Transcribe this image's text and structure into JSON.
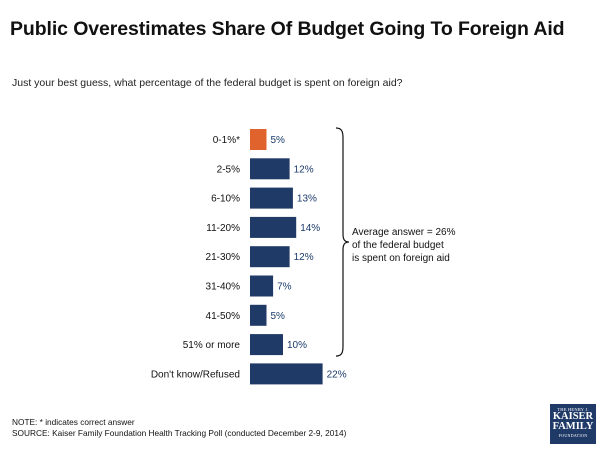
{
  "title": "Public Overestimates Share Of Budget Going To Foreign Aid",
  "subtitle": "Just your best guess, what percentage of the federal budget is spent on foreign aid?",
  "annotation": {
    "line1": "Average answer = 26%",
    "line2": "of the federal budget",
    "line3": "is spent on foreign aid"
  },
  "note": {
    "line1": "NOTE: * indicates correct answer",
    "line2": "SOURCE: Kaiser Family Foundation Health Tracking Poll (conducted December 2-9, 2014)"
  },
  "logo": {
    "line1": "THE HENRY J.",
    "line2": "KAISER",
    "line3": "FAMILY",
    "line4": "FOUNDATION"
  },
  "colors": {
    "bar": "#1f3a67",
    "highlight": "#e0622d",
    "value_text": "#1a3a6b"
  },
  "chart_data": {
    "type": "bar",
    "orientation": "horizontal",
    "title": "Public Overestimates Share Of Budget Going To Foreign Aid",
    "categories": [
      "0-1%*",
      "2-5%",
      "6-10%",
      "11-20%",
      "21-30%",
      "31-40%",
      "41-50%",
      "51% or more",
      "Don't know/Refused"
    ],
    "values": [
      5,
      12,
      13,
      14,
      12,
      7,
      5,
      10,
      22
    ],
    "value_labels": [
      "5%",
      "12%",
      "13%",
      "14%",
      "12%",
      "7%",
      "5%",
      "10%",
      "22%"
    ],
    "highlight_index": 0,
    "xlim": [
      0,
      22
    ],
    "grid": false
  }
}
